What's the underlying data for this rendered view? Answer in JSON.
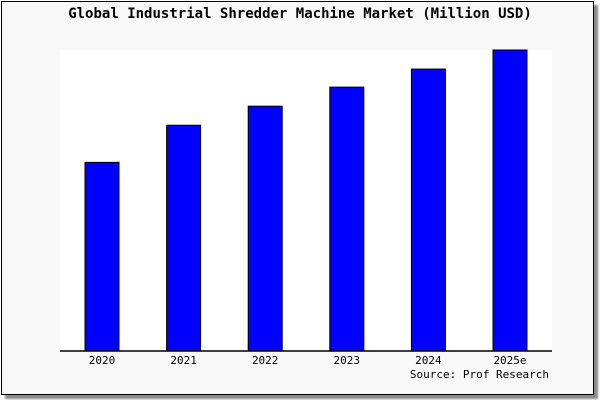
{
  "chart_data": {
    "type": "bar",
    "title": "Global Industrial Shredder Machine Market (Million USD)",
    "categories": [
      "2020",
      "2021",
      "2022",
      "2023",
      "2024",
      "2025e"
    ],
    "values": [
      188,
      225,
      244,
      263,
      281,
      300
    ],
    "ylim": [
      0,
      300
    ],
    "xlabel": "",
    "ylabel": "",
    "grid": false,
    "bar_color": "#0000ff",
    "source": "Source: Prof Research"
  }
}
